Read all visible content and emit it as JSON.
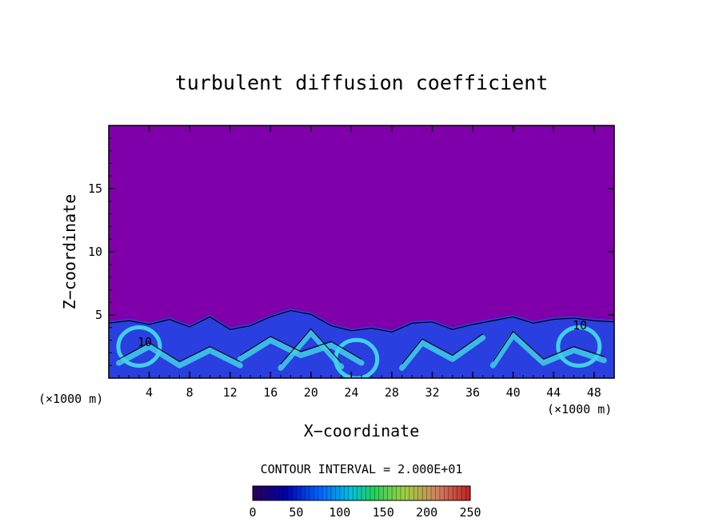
{
  "chart_data": {
    "type": "heatmap",
    "title": "turbulent diffusion coefficient",
    "xlabel": "X−coordinate",
    "ylabel": "Z−coordinate",
    "x_unit_label": "(×1000 m)",
    "x_unit_label_right": "(×1000 m)",
    "xlim": [
      0,
      50
    ],
    "ylim": [
      0,
      20
    ],
    "xticks": [
      4,
      8,
      12,
      16,
      20,
      24,
      28,
      32,
      36,
      40,
      44,
      48
    ],
    "yticks": [
      5,
      10,
      15
    ],
    "contour_interval_text": "CONTOUR INTERVAL = 2.000E+01",
    "colorbar": {
      "range": [
        0,
        250
      ],
      "ticks": [
        0,
        50,
        100,
        150,
        200,
        250
      ]
    },
    "colors": {
      "background_field": "#7f00aa",
      "turbulent_layer": "#2a3fe0",
      "high_values": "#40d0e8"
    },
    "boundary_layer_top_profile": [
      [
        0,
        4.5
      ],
      [
        2,
        4.7
      ],
      [
        4,
        4.4
      ],
      [
        6,
        4.8
      ],
      [
        8,
        4.2
      ],
      [
        10,
        5.0
      ],
      [
        12,
        4.0
      ],
      [
        14,
        4.3
      ],
      [
        16,
        5.0
      ],
      [
        18,
        5.5
      ],
      [
        20,
        5.2
      ],
      [
        22,
        4.3
      ],
      [
        24,
        3.9
      ],
      [
        26,
        4.1
      ],
      [
        28,
        3.8
      ],
      [
        30,
        4.5
      ],
      [
        32,
        4.6
      ],
      [
        34,
        4.0
      ],
      [
        36,
        4.4
      ],
      [
        38,
        4.7
      ],
      [
        40,
        5.0
      ],
      [
        42,
        4.5
      ],
      [
        44,
        4.8
      ],
      [
        46,
        4.9
      ],
      [
        48,
        4.7
      ],
      [
        50,
        4.6
      ]
    ]
  }
}
